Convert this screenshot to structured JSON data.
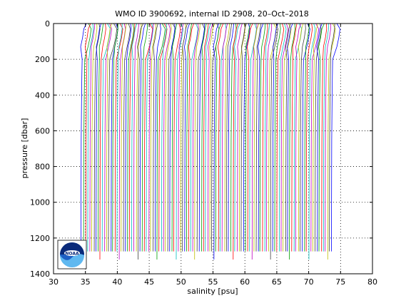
{
  "chart_data": {
    "type": "line",
    "title": "WMO ID 3900692, internal ID 2908, 20–Oct–2018",
    "xlabel": "salinity [psu]",
    "ylabel": "pressure [dbar]",
    "xlim": [
      30,
      80
    ],
    "ylim": [
      0,
      1400
    ],
    "y_reversed": true,
    "grid": true,
    "x_ticks": [
      "30",
      "35",
      "40",
      "45",
      "50",
      "55",
      "60",
      "65",
      "70",
      "75",
      "80"
    ],
    "y_ticks": [
      "0",
      "200",
      "400",
      "600",
      "800",
      "1000",
      "1200",
      "1400"
    ],
    "profile_count": 120,
    "profile_offset_start": 35.0,
    "profile_offset_step": 0.33,
    "profile_shape": {
      "pressure": [
        0,
        30,
        80,
        130,
        200,
        300,
        450,
        650,
        900,
        1200,
        1275
      ],
      "salinity_anomaly": [
        0.15,
        0.2,
        0.0,
        -0.3,
        -0.45,
        -0.5,
        -0.55,
        -0.6,
        -0.62,
        -0.64,
        -0.65
      ]
    },
    "colors": [
      "#0000ff",
      "#00a000",
      "#ff0000",
      "#00bfbf",
      "#bf00bf",
      "#bfbf00",
      "#404040"
    ]
  },
  "logo": {
    "text": "NOAA",
    "colors": {
      "dark": "#0a2a7a",
      "mid": "#1e5fc4",
      "light": "#5fb8f0"
    }
  }
}
